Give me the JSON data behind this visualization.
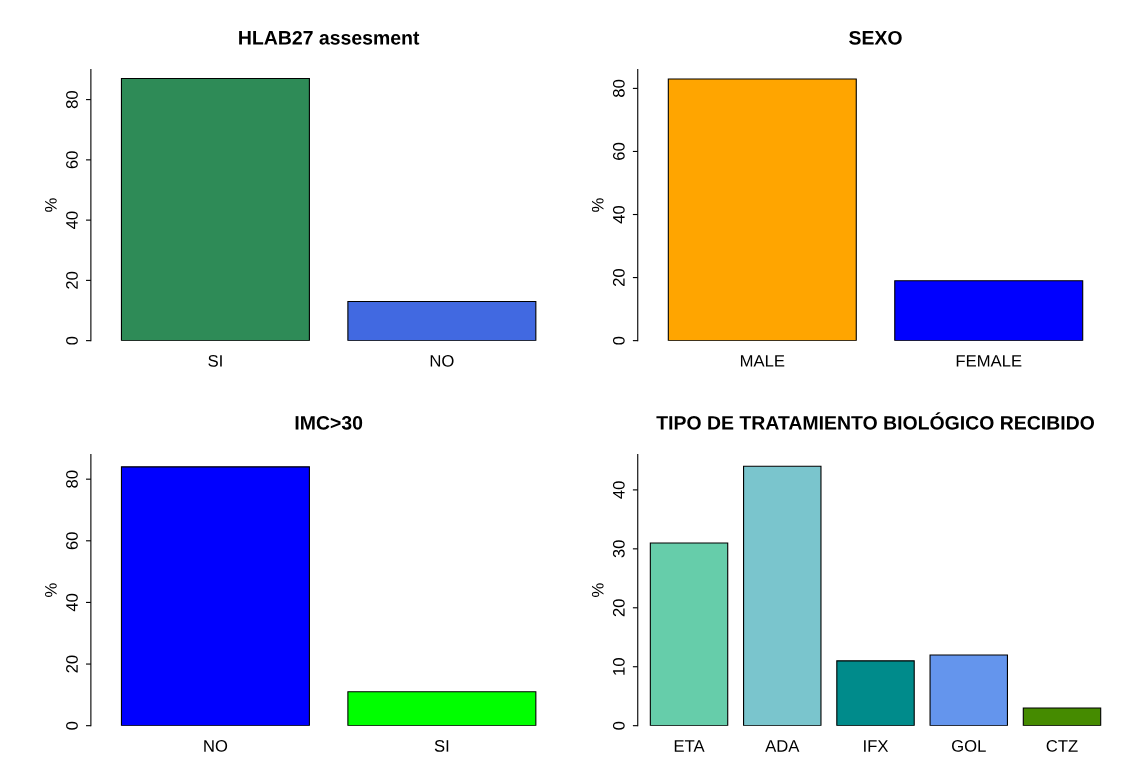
{
  "chart_data": [
    {
      "type": "bar",
      "title": "HLAB27 assesment",
      "ylabel": "%",
      "categories": [
        "SI",
        "NO"
      ],
      "values": [
        87,
        13
      ],
      "colors": [
        "#2e8b57",
        "#4169e1"
      ],
      "ylim": [
        0,
        90
      ],
      "yticks": [
        0,
        20,
        40,
        60,
        80
      ],
      "grid": false,
      "legend": false
    },
    {
      "type": "bar",
      "title": "SEXO",
      "ylabel": "%",
      "categories": [
        "MALE",
        "FEMALE"
      ],
      "values": [
        83,
        19
      ],
      "colors": [
        "#ffa500",
        "#0000ff"
      ],
      "ylim": [
        0,
        86
      ],
      "yticks": [
        0,
        20,
        40,
        60,
        80
      ],
      "grid": false,
      "legend": false
    },
    {
      "type": "bar",
      "title": "IMC>30",
      "ylabel": "%",
      "categories": [
        "NO",
        "SI"
      ],
      "values": [
        84,
        11
      ],
      "colors": [
        "#0000ff",
        "#00ff00"
      ],
      "ylim": [
        0,
        88
      ],
      "yticks": [
        0,
        20,
        40,
        60,
        80
      ],
      "grid": false,
      "legend": false
    },
    {
      "type": "bar",
      "title": "TIPO DE TRATAMIENTO BIOLÓGICO RECIBIDO",
      "ylabel": "%",
      "categories": [
        "ETA",
        "ADA",
        "IFX",
        "GOL",
        "CTZ"
      ],
      "values": [
        31,
        44,
        11,
        12,
        3
      ],
      "colors": [
        "#66cdaa",
        "#7ac5cd",
        "#008b8b",
        "#6495ed",
        "#458b00"
      ],
      "ylim": [
        0,
        46
      ],
      "yticks": [
        0,
        10,
        20,
        30,
        40
      ],
      "grid": false,
      "legend": false
    }
  ]
}
